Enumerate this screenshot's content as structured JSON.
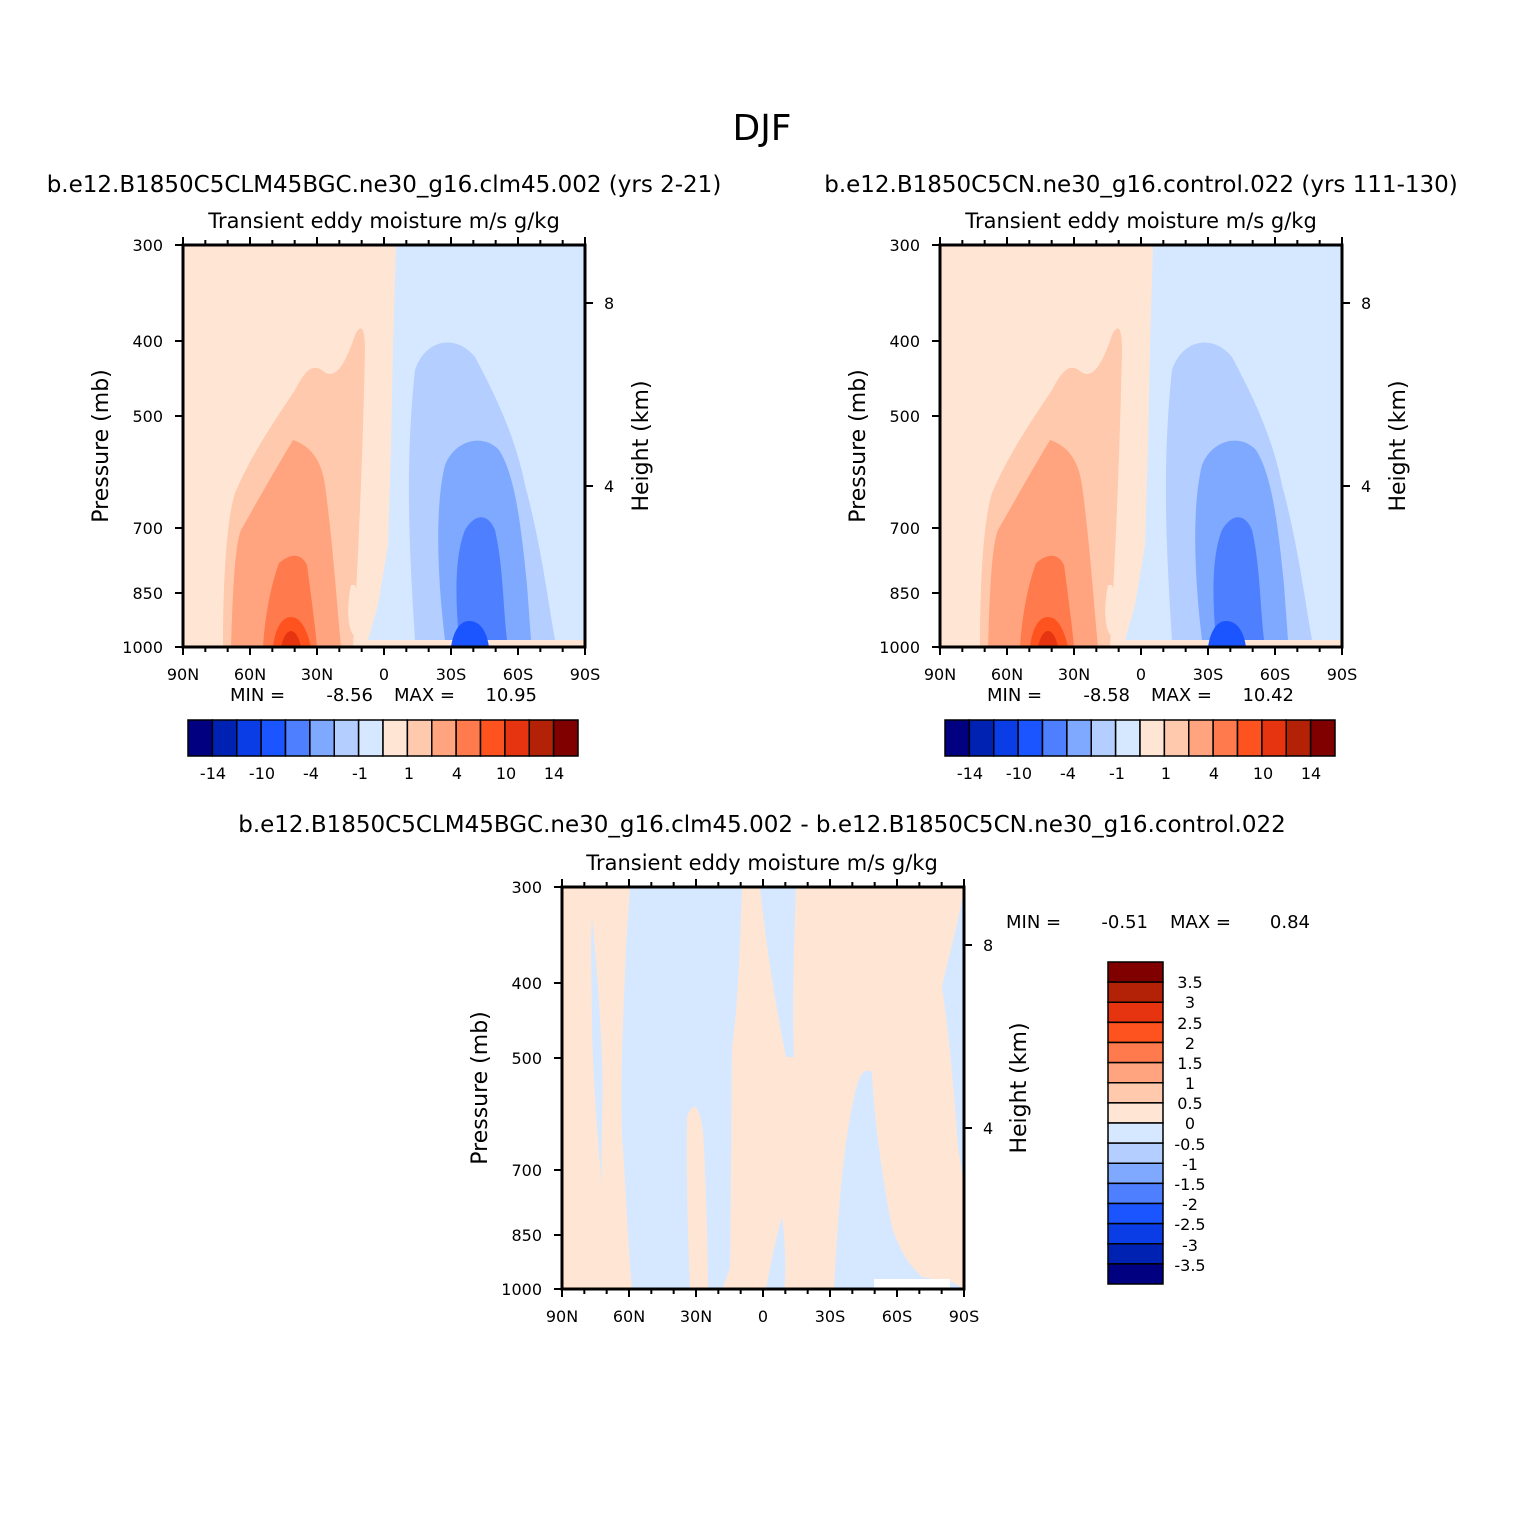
{
  "figure": {
    "title": "DJF"
  },
  "chart_data": [
    {
      "type": "contour",
      "case_title": "b.e12.B1850C5CLM45BGC.ne30_g16.clm45.002 (yrs 2-21)",
      "subtitle": "Transient eddy moisture m/s g/kg",
      "ylabel": "Pressure (mb)",
      "y2label": "Height (km)",
      "x_ticks": [
        "90N",
        "60N",
        "30N",
        "0",
        "30S",
        "60S",
        "90S"
      ],
      "y_ticks": [
        "300",
        "400",
        "500",
        "700",
        "850",
        "1000"
      ],
      "y2_ticks": [
        "8",
        "4"
      ],
      "min_label": "MIN =",
      "min_value": "-8.56",
      "max_label": "MAX =",
      "max_value": "10.95",
      "colorbar_labels": [
        "-14",
        "-10",
        "-4",
        "-1",
        "1",
        "4",
        "10",
        "14"
      ],
      "colors": [
        "#000080",
        "#0022b3",
        "#0b3de6",
        "#1a55ff",
        "#4d7fff",
        "#7fa8ff",
        "#b3ceff",
        "#d6e8ff",
        "#ffe6d4",
        "#ffc9ad",
        "#ffa47f",
        "#ff7a4d",
        "#ff531f",
        "#e63310",
        "#b32206",
        "#800000"
      ]
    },
    {
      "type": "contour",
      "case_title": "b.e12.B1850C5CN.ne30_g16.control.022 (yrs 111-130)",
      "subtitle": "Transient eddy moisture m/s g/kg",
      "ylabel": "Pressure (mb)",
      "y2label": "Height (km)",
      "x_ticks": [
        "90N",
        "60N",
        "30N",
        "0",
        "30S",
        "60S",
        "90S"
      ],
      "y_ticks": [
        "300",
        "400",
        "500",
        "700",
        "850",
        "1000"
      ],
      "y2_ticks": [
        "8",
        "4"
      ],
      "min_label": "MIN =",
      "min_value": "-8.58",
      "max_label": "MAX =",
      "max_value": "10.42",
      "colorbar_labels": [
        "-14",
        "-10",
        "-4",
        "-1",
        "1",
        "4",
        "10",
        "14"
      ],
      "colors": [
        "#000080",
        "#0022b3",
        "#0b3de6",
        "#1a55ff",
        "#4d7fff",
        "#7fa8ff",
        "#b3ceff",
        "#d6e8ff",
        "#ffe6d4",
        "#ffc9ad",
        "#ffa47f",
        "#ff7a4d",
        "#ff531f",
        "#e63310",
        "#b32206",
        "#800000"
      ]
    },
    {
      "type": "contour",
      "case_title": "b.e12.B1850C5CLM45BGC.ne30_g16.clm45.002 - b.e12.B1850C5CN.ne30_g16.control.022",
      "subtitle": "Transient eddy moisture m/s g/kg",
      "ylabel": "Pressure (mb)",
      "y2label": "Height (km)",
      "x_ticks": [
        "90N",
        "60N",
        "30N",
        "0",
        "30S",
        "60S",
        "90S"
      ],
      "y_ticks": [
        "300",
        "400",
        "500",
        "700",
        "850",
        "1000"
      ],
      "y2_ticks": [
        "8",
        "4"
      ],
      "min_label": "MIN =",
      "min_value": "-0.51",
      "max_label": "MAX =",
      "max_value": "0.84",
      "colorbar_labels": [
        "3.5",
        "3",
        "2.5",
        "2",
        "1.5",
        "1",
        "0.5",
        "0",
        "-0.5",
        "-1",
        "-1.5",
        "-2",
        "-2.5",
        "-3",
        "-3.5"
      ],
      "colors": [
        "#800000",
        "#b32206",
        "#e63310",
        "#ff531f",
        "#ff7a4d",
        "#ffa47f",
        "#ffc9ad",
        "#ffe6d4",
        "#d6e8ff",
        "#b3ceff",
        "#7fa8ff",
        "#4d7fff",
        "#1a55ff",
        "#0b3de6",
        "#0022b3",
        "#000080"
      ]
    }
  ]
}
